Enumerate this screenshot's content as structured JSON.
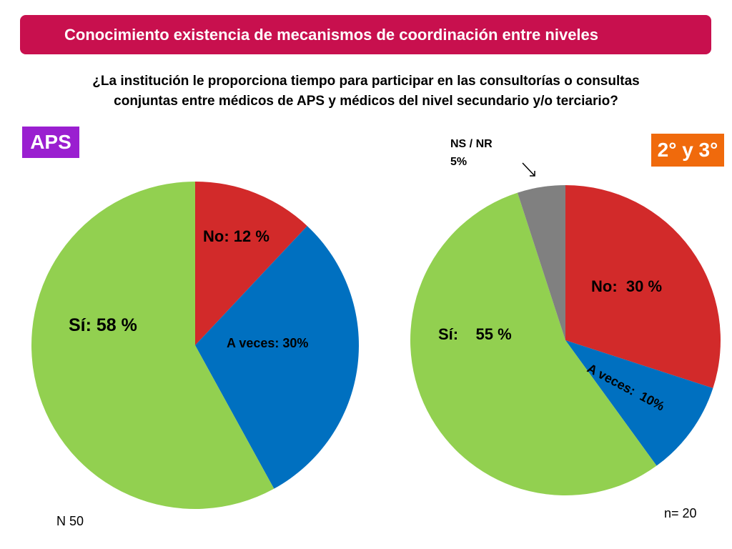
{
  "title": "Conocimiento existencia de mecanismos de  coordinación entre niveles",
  "question_line1": "¿La institución le proporciona tiempo para participar en las consultorías o consultas",
  "question_line2": "conjuntas entre médicos de APS y médicos del nivel secundario y/o terciario?",
  "colors": {
    "title_bar": "#c8104e",
    "aps_badge": "#9a1fd0",
    "sec_badge": "#f06a0c",
    "no": "#d22a2a",
    "a_veces": "#0070c0",
    "si": "#92d050",
    "ns_nr": "#808080"
  },
  "chart_data": [
    {
      "type": "pie",
      "group_label": "APS",
      "sample_note": "N 50",
      "slices": [
        {
          "key": "no",
          "label": "No: 12 %",
          "value": 12
        },
        {
          "key": "a_veces",
          "label": "A veces:  30%",
          "value": 30
        },
        {
          "key": "si",
          "label": "Sí:  58 %",
          "value": 58
        }
      ]
    },
    {
      "type": "pie",
      "group_label": "2° y 3°",
      "sample_note": "n= 20",
      "slices": [
        {
          "key": "no",
          "label": "No:  30 %",
          "value": 30
        },
        {
          "key": "a_veces",
          "label": "A veces:  10%",
          "value": 10
        },
        {
          "key": "si",
          "label": "Sí:    55 %",
          "value": 55
        },
        {
          "key": "ns_nr",
          "label_line1": "NS / NR",
          "label_line2": "5%",
          "value": 5
        }
      ]
    }
  ]
}
